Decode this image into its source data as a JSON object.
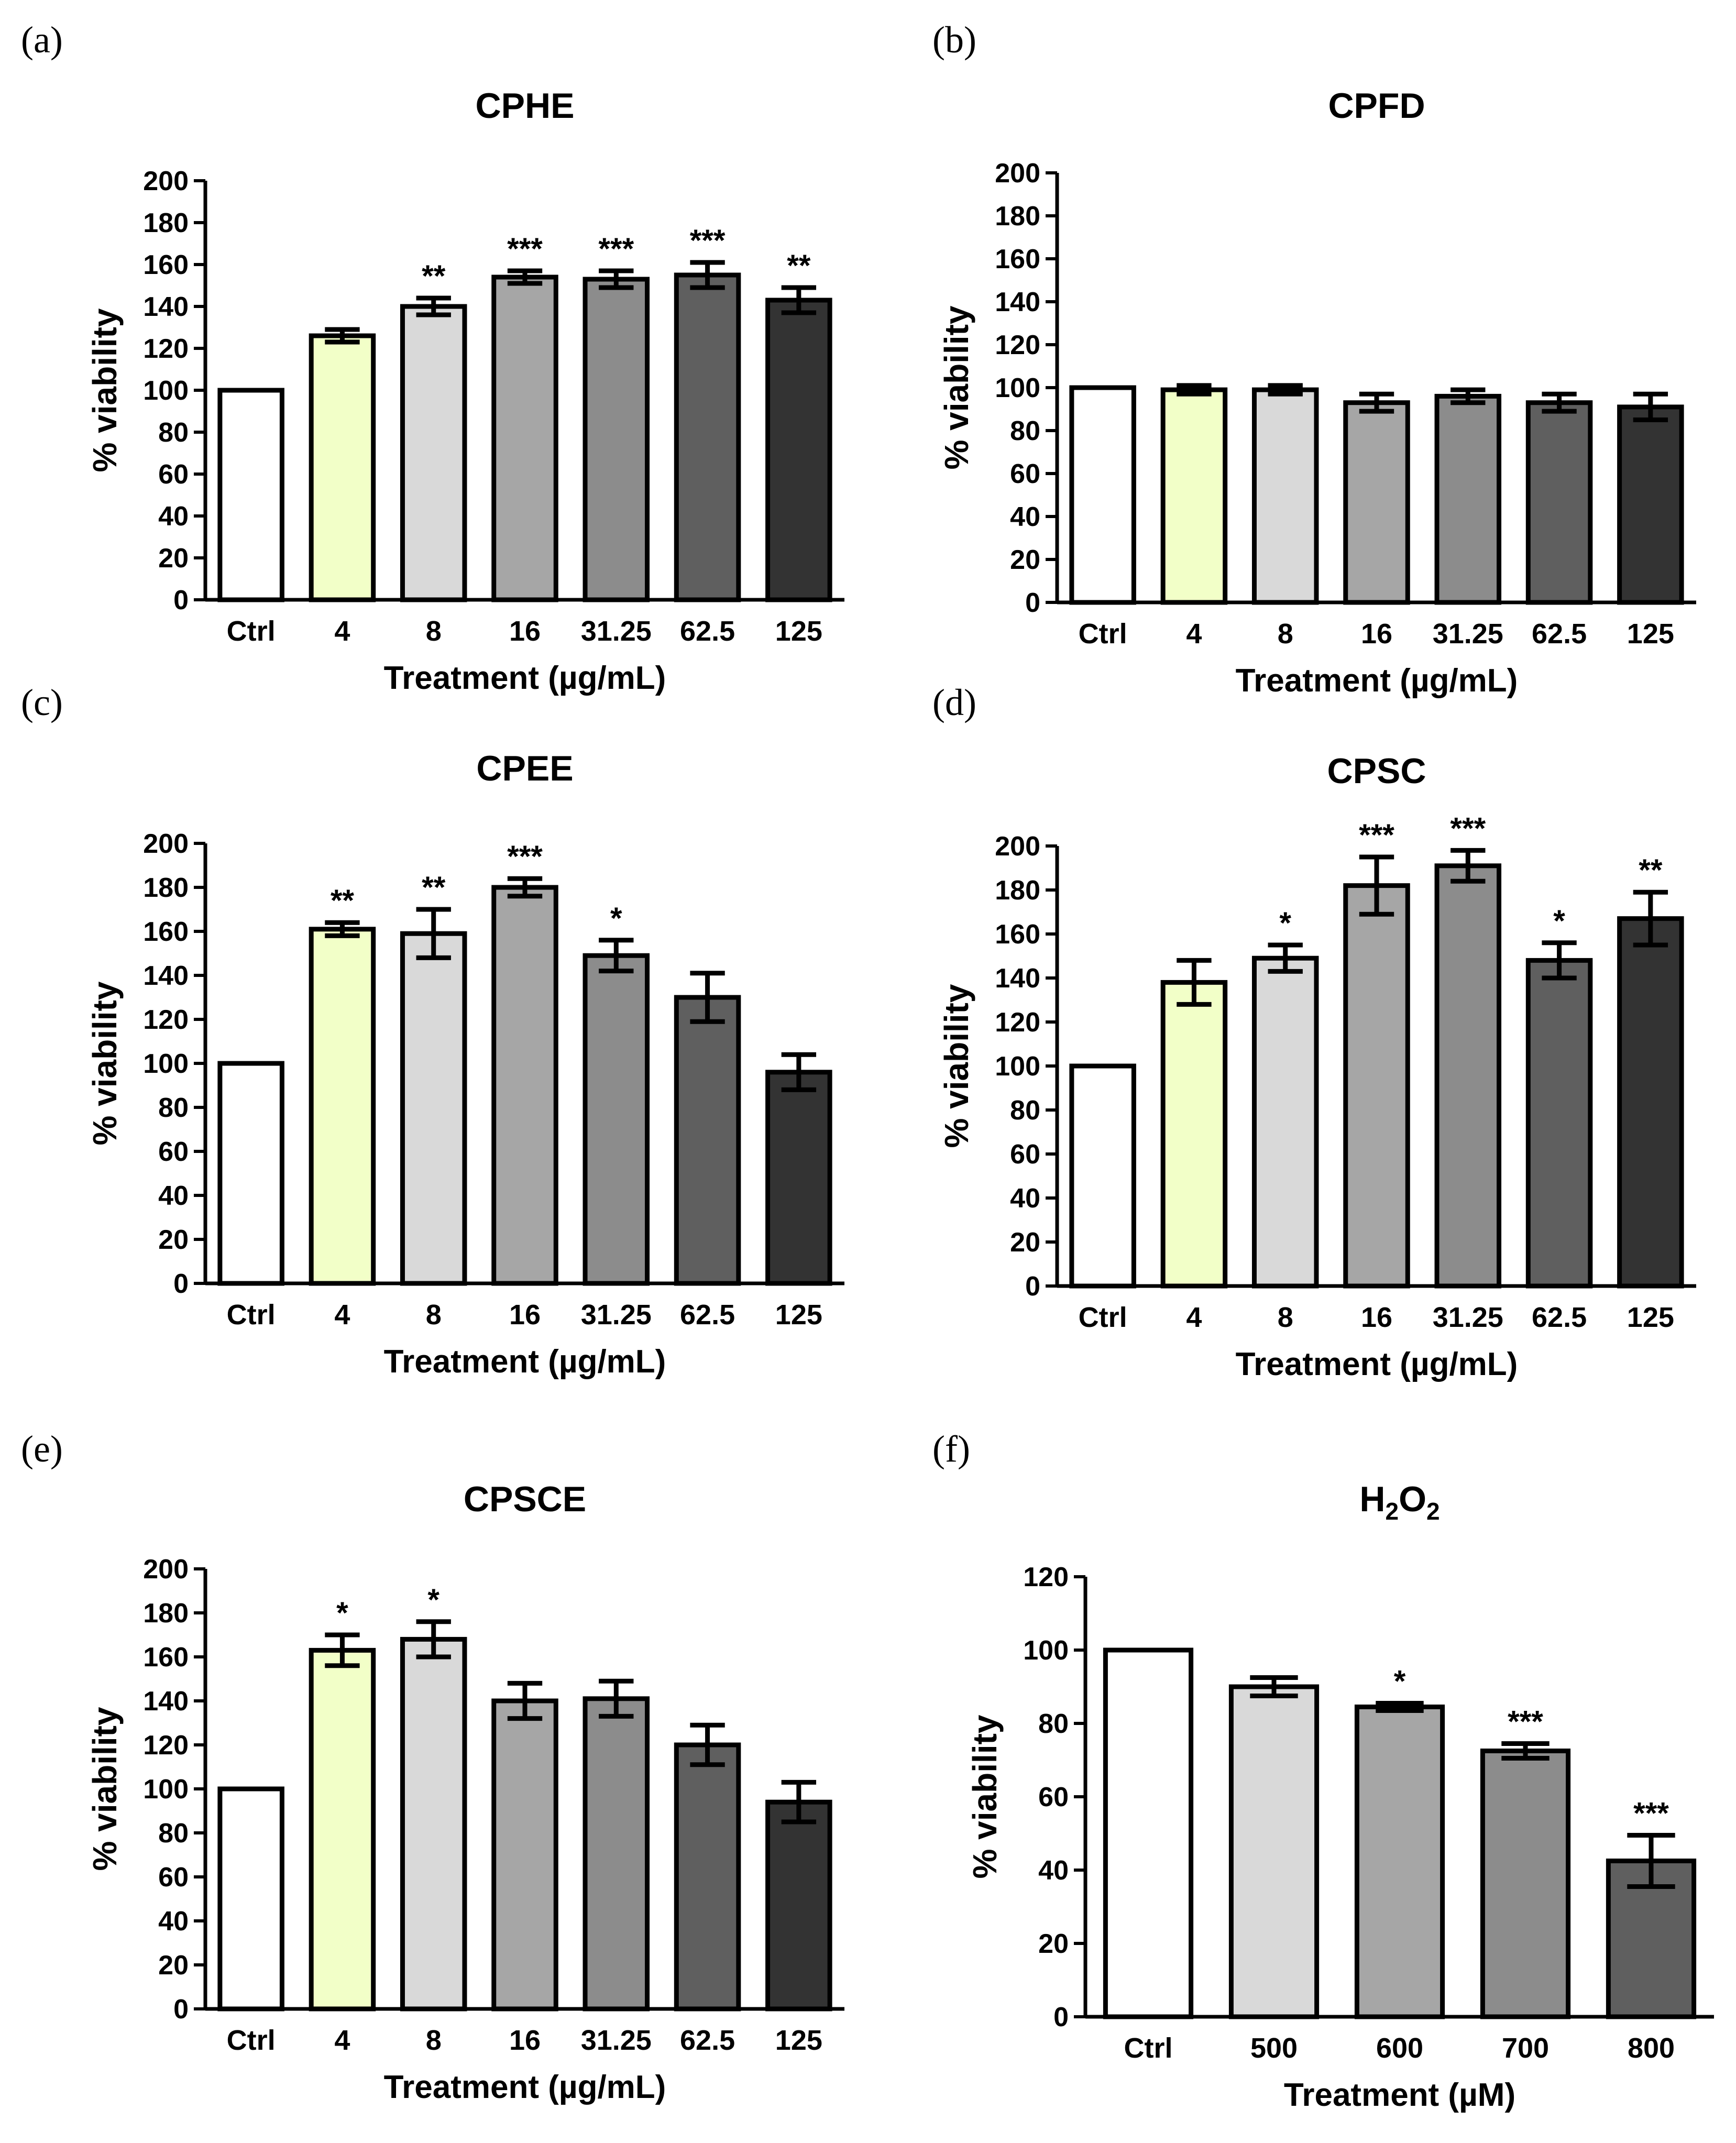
{
  "chart_data": [
    {
      "panel": "(a)",
      "title": "CPHE",
      "type": "bar",
      "ylabel": "% viability",
      "xlabel": "Treatment (µg/mL)",
      "ylim": [
        0,
        200
      ],
      "yticks": [
        0,
        20,
        40,
        60,
        80,
        100,
        120,
        140,
        160,
        180,
        200
      ],
      "categories": [
        "Ctrl",
        "4",
        "8",
        "16",
        "31.25",
        "62.5",
        "125"
      ],
      "values": [
        100,
        126,
        140,
        154,
        153,
        155,
        143
      ],
      "errors": [
        0,
        3,
        4,
        3,
        4,
        6,
        6
      ],
      "significance": [
        "",
        "",
        "**",
        "***",
        "***",
        "***",
        "**"
      ],
      "colors": [
        "#ffffff",
        "#f2ffc8",
        "#d9d9d9",
        "#a6a6a6",
        "#8c8c8c",
        "#5f5f5f",
        "#333333"
      ]
    },
    {
      "panel": "(b)",
      "title": "CPFD",
      "type": "bar",
      "ylabel": "% viability",
      "xlabel": "Treatment (µg/mL)",
      "ylim": [
        0,
        200
      ],
      "yticks": [
        0,
        20,
        40,
        60,
        80,
        100,
        120,
        140,
        160,
        180,
        200
      ],
      "categories": [
        "Ctrl",
        "4",
        "8",
        "16",
        "31.25",
        "62.5",
        "125"
      ],
      "values": [
        100,
        99,
        99,
        93,
        96,
        93,
        91
      ],
      "errors": [
        0,
        2,
        2,
        4,
        3,
        4,
        6
      ],
      "significance": [
        "",
        "",
        "",
        "",
        "",
        "",
        ""
      ],
      "colors": [
        "#ffffff",
        "#f2ffc8",
        "#d9d9d9",
        "#a6a6a6",
        "#8c8c8c",
        "#5f5f5f",
        "#333333"
      ]
    },
    {
      "panel": "(c)",
      "title": "CPEE",
      "type": "bar",
      "ylabel": "% viability",
      "xlabel": "Treatment (µg/mL)",
      "ylim": [
        0,
        200
      ],
      "yticks": [
        0,
        20,
        40,
        60,
        80,
        100,
        120,
        140,
        160,
        180,
        200
      ],
      "categories": [
        "Ctrl",
        "4",
        "8",
        "16",
        "31.25",
        "62.5",
        "125"
      ],
      "values": [
        100,
        161,
        159,
        180,
        149,
        130,
        96
      ],
      "errors": [
        0,
        3,
        11,
        4,
        7,
        11,
        8
      ],
      "significance": [
        "",
        "**",
        "**",
        "***",
        "*",
        "",
        ""
      ],
      "colors": [
        "#ffffff",
        "#f2ffc8",
        "#d9d9d9",
        "#a6a6a6",
        "#8c8c8c",
        "#5f5f5f",
        "#333333"
      ]
    },
    {
      "panel": "(d)",
      "title": "CPSC",
      "type": "bar",
      "ylabel": "% viability",
      "xlabel": "Treatment (µg/mL)",
      "ylim": [
        0,
        200
      ],
      "yticks": [
        0,
        20,
        40,
        60,
        80,
        100,
        120,
        140,
        160,
        180,
        200
      ],
      "categories": [
        "Ctrl",
        "4",
        "8",
        "16",
        "31.25",
        "62.5",
        "125"
      ],
      "values": [
        100,
        138,
        149,
        182,
        191,
        148,
        167
      ],
      "errors": [
        0,
        10,
        6,
        13,
        7,
        8,
        12
      ],
      "significance": [
        "",
        "",
        "*",
        "***",
        "***",
        "*",
        "**"
      ],
      "colors": [
        "#ffffff",
        "#f2ffc8",
        "#d9d9d9",
        "#a6a6a6",
        "#8c8c8c",
        "#5f5f5f",
        "#333333"
      ]
    },
    {
      "panel": "(e)",
      "title": "CPSCE",
      "type": "bar",
      "ylabel": "% viability",
      "xlabel": "Treatment (µg/mL)",
      "ylim": [
        0,
        200
      ],
      "yticks": [
        0,
        20,
        40,
        60,
        80,
        100,
        120,
        140,
        160,
        180,
        200
      ],
      "categories": [
        "Ctrl",
        "4",
        "8",
        "16",
        "31.25",
        "62.5",
        "125"
      ],
      "values": [
        100,
        163,
        168,
        140,
        141,
        120,
        94
      ],
      "errors": [
        0,
        7,
        8,
        8,
        8,
        9,
        9
      ],
      "significance": [
        "",
        "*",
        "*",
        "",
        "",
        "",
        ""
      ],
      "colors": [
        "#ffffff",
        "#f2ffc8",
        "#d9d9d9",
        "#a6a6a6",
        "#8c8c8c",
        "#5f5f5f",
        "#333333"
      ]
    },
    {
      "panel": "(f)",
      "title": "H2O2",
      "type": "bar",
      "ylabel": "% viability",
      "xlabel": "Treatment (µM)",
      "ylim": [
        0,
        120
      ],
      "yticks": [
        0,
        20,
        40,
        60,
        80,
        100,
        120
      ],
      "categories": [
        "Ctrl",
        "500",
        "600",
        "700",
        "800"
      ],
      "values": [
        100,
        90,
        84.5,
        72.5,
        42.5
      ],
      "errors": [
        0,
        2.5,
        1,
        2,
        7
      ],
      "significance": [
        "",
        "",
        "*",
        "***",
        "***"
      ],
      "colors": [
        "#ffffff",
        "#d9d9d9",
        "#a6a6a6",
        "#8c8c8c",
        "#5f5f5f"
      ]
    }
  ]
}
